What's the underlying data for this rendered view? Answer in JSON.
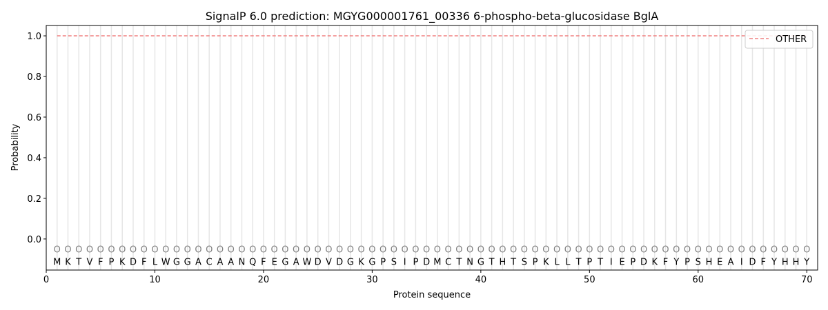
{
  "chart_data": {
    "type": "line",
    "title": "SignalP 6.0 prediction: MGYG000001761_00336 6-phospho-beta-glucosidase BglA",
    "xlabel": "Protein sequence",
    "ylabel": "Probability",
    "xlim": [
      0,
      71
    ],
    "ylim": [
      -0.153,
      1.051
    ],
    "xticks": [
      0,
      10,
      20,
      30,
      40,
      50,
      60,
      70
    ],
    "yticks": [
      0.0,
      0.2,
      0.4,
      0.6,
      0.8,
      1.0
    ],
    "ytick_labels": [
      "0.0",
      "0.2",
      "0.4",
      "0.6",
      "0.8",
      "1.0"
    ],
    "sequence": [
      "M",
      "K",
      "T",
      "V",
      "F",
      "P",
      "K",
      "D",
      "F",
      "L",
      "W",
      "G",
      "G",
      "A",
      "C",
      "A",
      "A",
      "N",
      "Q",
      "F",
      "E",
      "G",
      "A",
      "W",
      "D",
      "V",
      "D",
      "G",
      "K",
      "G",
      "P",
      "S",
      "I",
      "P",
      "D",
      "M",
      "C",
      "T",
      "N",
      "G",
      "T",
      "H",
      "T",
      "S",
      "P",
      "K",
      "L",
      "L",
      "T",
      "P",
      "T",
      "I",
      "E",
      "P",
      "D",
      "K",
      "F",
      "Y",
      "P",
      "S",
      "H",
      "E",
      "A",
      "I",
      "D",
      "F",
      "Y",
      "H",
      "H",
      "Y"
    ],
    "region_marker": "O",
    "series": [
      {
        "name": "OTHER",
        "color": "#f08080",
        "style": "dashed",
        "x_range": [
          1,
          70
        ],
        "value": 1.0
      }
    ],
    "legend": {
      "placement": "top-right",
      "entries": [
        "OTHER"
      ]
    },
    "grid": "vertical lines at each residue"
  }
}
